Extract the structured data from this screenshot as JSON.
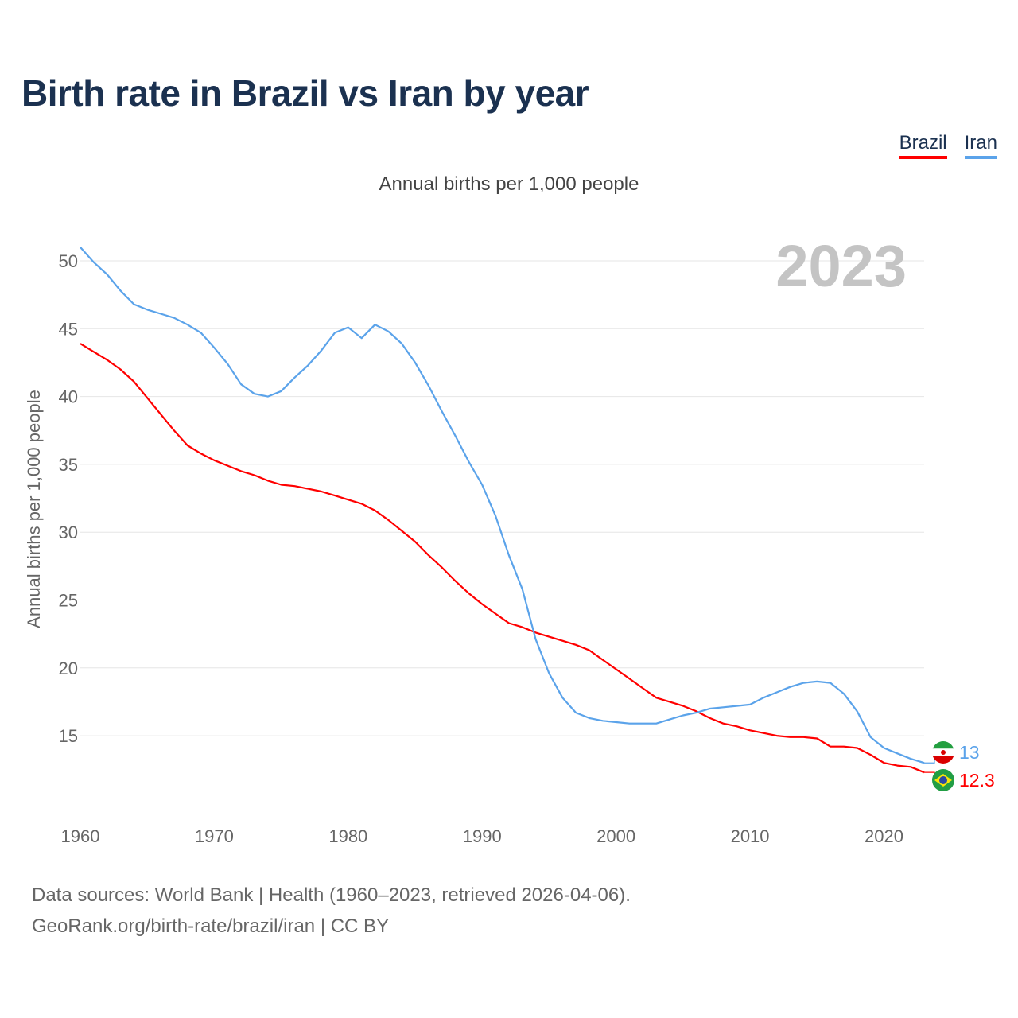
{
  "title": "Birth rate in Brazil vs Iran by year",
  "subtitle": "Annual births per 1,000 people",
  "legend": [
    {
      "label": "Brazil",
      "color": "#ff0000"
    },
    {
      "label": "Iran",
      "color": "#5ba3ea"
    }
  ],
  "footer": {
    "line1": "Data sources: World Bank | Health (1960–2023, retrieved 2026-04-06).",
    "line2": "GeoRank.org/birth-rate/brazil/iran | CC BY"
  },
  "chart_data": {
    "type": "line",
    "title": "Birth rate in Brazil vs Iran by year",
    "ylabel": "Annual births per 1,000 people",
    "xlabel": "",
    "year_label": "2023",
    "xlim": [
      1960,
      2023
    ],
    "ylim": [
      10,
      51
    ],
    "xticks": [
      1960,
      1970,
      1980,
      1990,
      2000,
      2010,
      2020
    ],
    "yticks": [
      15,
      20,
      25,
      30,
      35,
      40,
      45,
      50
    ],
    "grid": true,
    "x_start": 1960,
    "series": [
      {
        "name": "Brazil",
        "color": "#ff0000",
        "end_label": "12.3",
        "values": [
          43.9,
          43.3,
          42.7,
          42.0,
          41.1,
          39.9,
          38.7,
          37.5,
          36.4,
          35.8,
          35.3,
          34.9,
          34.5,
          34.2,
          33.8,
          33.5,
          33.4,
          33.2,
          33.0,
          32.7,
          32.4,
          32.1,
          31.6,
          30.9,
          30.1,
          29.3,
          28.3,
          27.4,
          26.4,
          25.5,
          24.7,
          24.0,
          23.3,
          23.0,
          22.6,
          22.3,
          22.0,
          21.7,
          21.3,
          20.6,
          19.9,
          19.2,
          18.5,
          17.8,
          17.5,
          17.2,
          16.8,
          16.3,
          15.9,
          15.7,
          15.4,
          15.2,
          15.0,
          14.9,
          14.9,
          14.8,
          14.2,
          14.2,
          14.1,
          13.6,
          13.0,
          12.8,
          12.7,
          12.3
        ]
      },
      {
        "name": "Iran",
        "color": "#5ba3ea",
        "end_label": "13",
        "values": [
          51.0,
          49.9,
          49.0,
          47.8,
          46.8,
          46.4,
          46.1,
          45.8,
          45.3,
          44.7,
          43.6,
          42.4,
          40.9,
          40.2,
          40.0,
          40.4,
          41.4,
          42.3,
          43.4,
          44.7,
          45.1,
          44.3,
          45.3,
          44.8,
          43.9,
          42.5,
          40.8,
          38.9,
          37.1,
          35.2,
          33.5,
          31.2,
          28.3,
          25.8,
          22.1,
          19.6,
          17.8,
          16.7,
          16.3,
          16.1,
          16.0,
          15.9,
          15.9,
          15.9,
          16.2,
          16.5,
          16.7,
          17.0,
          17.1,
          17.2,
          17.3,
          17.8,
          18.2,
          18.6,
          18.9,
          19.0,
          18.9,
          18.1,
          16.8,
          14.9,
          14.1,
          13.7,
          13.3,
          13.0
        ]
      }
    ]
  }
}
